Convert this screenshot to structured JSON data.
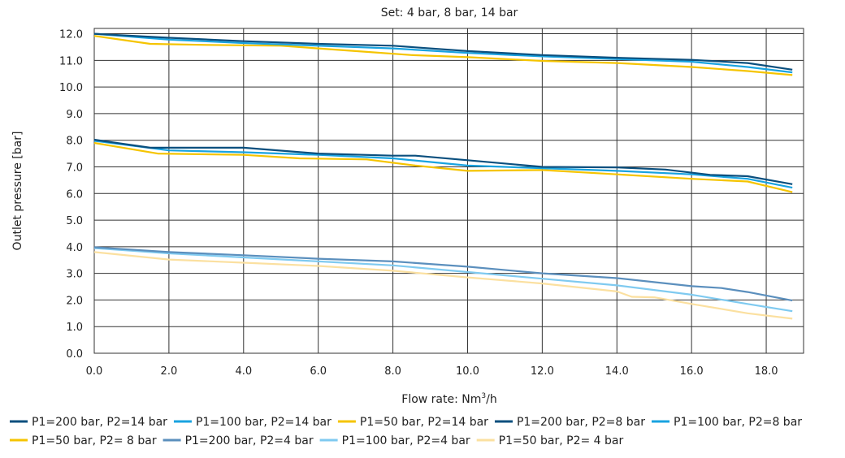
{
  "chart_data": {
    "type": "line",
    "title": "Set: 4 bar, 8 bar, 14 bar",
    "xlabel": "Flow rate: Nm",
    "xlabel_sup": "3",
    "xlabel_suffix": "/h",
    "ylabel": "Outlet pressure [bar]",
    "xlim": [
      0,
      19
    ],
    "ylim": [
      0,
      12.2
    ],
    "xticks": [
      "0.0",
      "2.0",
      "4.0",
      "6.0",
      "8.0",
      "10.0",
      "12.0",
      "14.0",
      "16.0",
      "18.0"
    ],
    "xtick_values": [
      0,
      2,
      4,
      6,
      8,
      10,
      12,
      14,
      16,
      18
    ],
    "yticks": [
      "0.0",
      "1.0",
      "2.0",
      "3.0",
      "4.0",
      "5.0",
      "6.0",
      "7.0",
      "8.0",
      "9.0",
      "10.0",
      "11.0",
      "12.0"
    ],
    "ytick_values": [
      0,
      1,
      2,
      3,
      4,
      5,
      6,
      7,
      8,
      9,
      10,
      11,
      12
    ],
    "grid": true,
    "legend_position": "bottom",
    "series": [
      {
        "name": "P1=200 bar, P2=14 bar",
        "color": "#0a4f7e",
        "x": [
          0,
          2,
          4,
          6,
          8,
          10,
          12,
          14,
          16,
          17.5,
          18.7
        ],
        "y": [
          12.0,
          11.85,
          11.72,
          11.62,
          11.55,
          11.35,
          11.2,
          11.1,
          11.02,
          10.9,
          10.65
        ]
      },
      {
        "name": "P1=100 bar, P2=14 bar",
        "color": "#19a3e0",
        "x": [
          0,
          2,
          4,
          6,
          8,
          10,
          12,
          14,
          16,
          17.5,
          18.7
        ],
        "y": [
          12.0,
          11.78,
          11.65,
          11.55,
          11.45,
          11.28,
          11.15,
          11.05,
          10.95,
          10.75,
          10.55
        ]
      },
      {
        "name": "P1=50 bar, P2=14 bar",
        "color": "#f5c400",
        "x": [
          0,
          1.5,
          3,
          5,
          7,
          8.5,
          10,
          12,
          14,
          16,
          17.5,
          18.7
        ],
        "y": [
          11.92,
          11.62,
          11.58,
          11.55,
          11.35,
          11.2,
          11.12,
          10.98,
          10.9,
          10.75,
          10.6,
          10.45
        ]
      },
      {
        "name": "P1=200 bar, P2=8 bar",
        "color": "#0a4f7e",
        "x": [
          0,
          1.5,
          4,
          6,
          8,
          8.6,
          10,
          12,
          14,
          15.3,
          16.5,
          17.5,
          18.7
        ],
        "y": [
          8.02,
          7.72,
          7.72,
          7.5,
          7.42,
          7.42,
          7.25,
          7.0,
          6.98,
          6.9,
          6.7,
          6.65,
          6.35
        ]
      },
      {
        "name": "P1=100 bar, P2=8 bar",
        "color": "#19a3e0",
        "x": [
          0,
          2,
          4,
          6,
          8,
          10,
          12,
          14,
          16,
          17.5,
          18.7
        ],
        "y": [
          7.98,
          7.62,
          7.55,
          7.45,
          7.32,
          7.05,
          6.95,
          6.85,
          6.72,
          6.55,
          6.22
        ]
      },
      {
        "name": "P1=50 bar, P2= 8 bar",
        "color": "#f5c400",
        "x": [
          0,
          1.7,
          4,
          5.5,
          7.3,
          8.6,
          10,
          12,
          14,
          16,
          17.5,
          18.7
        ],
        "y": [
          7.9,
          7.5,
          7.45,
          7.32,
          7.28,
          7.05,
          6.85,
          6.88,
          6.72,
          6.55,
          6.45,
          6.05
        ]
      },
      {
        "name": "P1=200 bar, P2=4 bar",
        "color": "#5b8fbd",
        "x": [
          0,
          2,
          4,
          6,
          8,
          10,
          12,
          14,
          16,
          16.8,
          17.5,
          18.7
        ],
        "y": [
          3.98,
          3.8,
          3.68,
          3.55,
          3.45,
          3.25,
          3.0,
          2.82,
          2.52,
          2.45,
          2.3,
          1.98
        ]
      },
      {
        "name": "P1=100 bar, P2=4 bar",
        "color": "#7fcaf0",
        "x": [
          0,
          2,
          4,
          6,
          8,
          10,
          12,
          14,
          16,
          17.5,
          18.7
        ],
        "y": [
          3.95,
          3.75,
          3.6,
          3.45,
          3.3,
          3.05,
          2.8,
          2.55,
          2.2,
          1.85,
          1.58
        ]
      },
      {
        "name": "P1=50 bar, P2= 4 bar",
        "color": "#fbe0a0",
        "x": [
          0,
          2,
          4,
          6,
          8,
          10,
          12,
          14,
          14.4,
          15,
          16,
          17.5,
          18.7
        ],
        "y": [
          3.8,
          3.52,
          3.4,
          3.28,
          3.1,
          2.85,
          2.62,
          2.32,
          2.12,
          2.1,
          1.85,
          1.5,
          1.3
        ]
      }
    ]
  }
}
